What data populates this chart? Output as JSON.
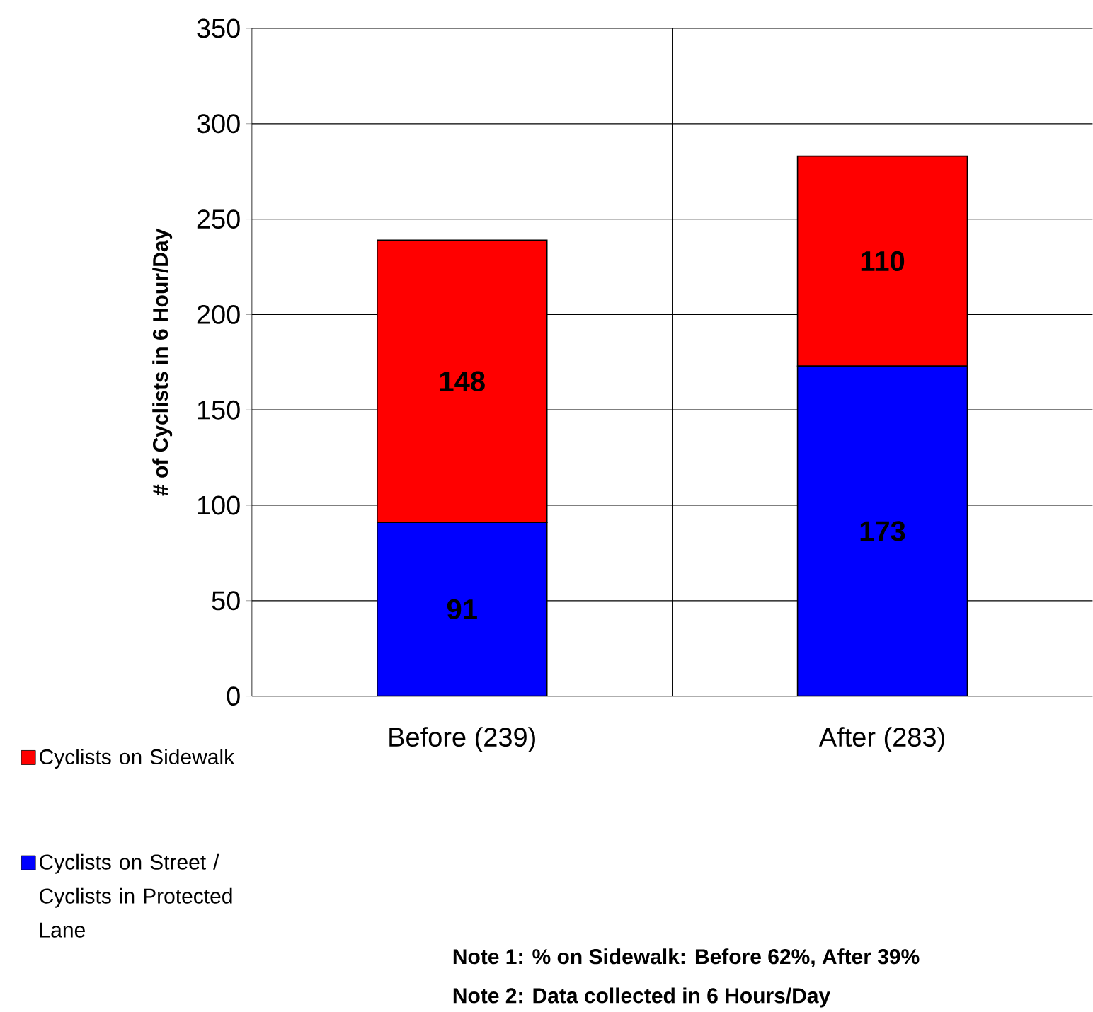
{
  "chart_data": {
    "type": "bar",
    "stacked": true,
    "ylabel": "# of Cyclists in 6 Hour/Day",
    "categories": [
      "Before (239)",
      "After (283)"
    ],
    "series": [
      {
        "name": "Cyclists on Street / Cyclists in Protected Lane",
        "color": "#0000ff",
        "values": [
          91,
          173
        ]
      },
      {
        "name": "Cyclists on Sidewalk",
        "color": "#ff0000",
        "values": [
          148,
          110
        ]
      }
    ],
    "ylim": [
      0,
      350
    ],
    "yticks": [
      0,
      50,
      100,
      150,
      200,
      250,
      300,
      350
    ],
    "grid": true,
    "legend": "bottom left",
    "data_labels": true,
    "annotations": [
      "Note 1: % on Sidewalk: Before 62%, After 39%",
      "Note 2: Data collected in 6 Hours/Day"
    ]
  }
}
